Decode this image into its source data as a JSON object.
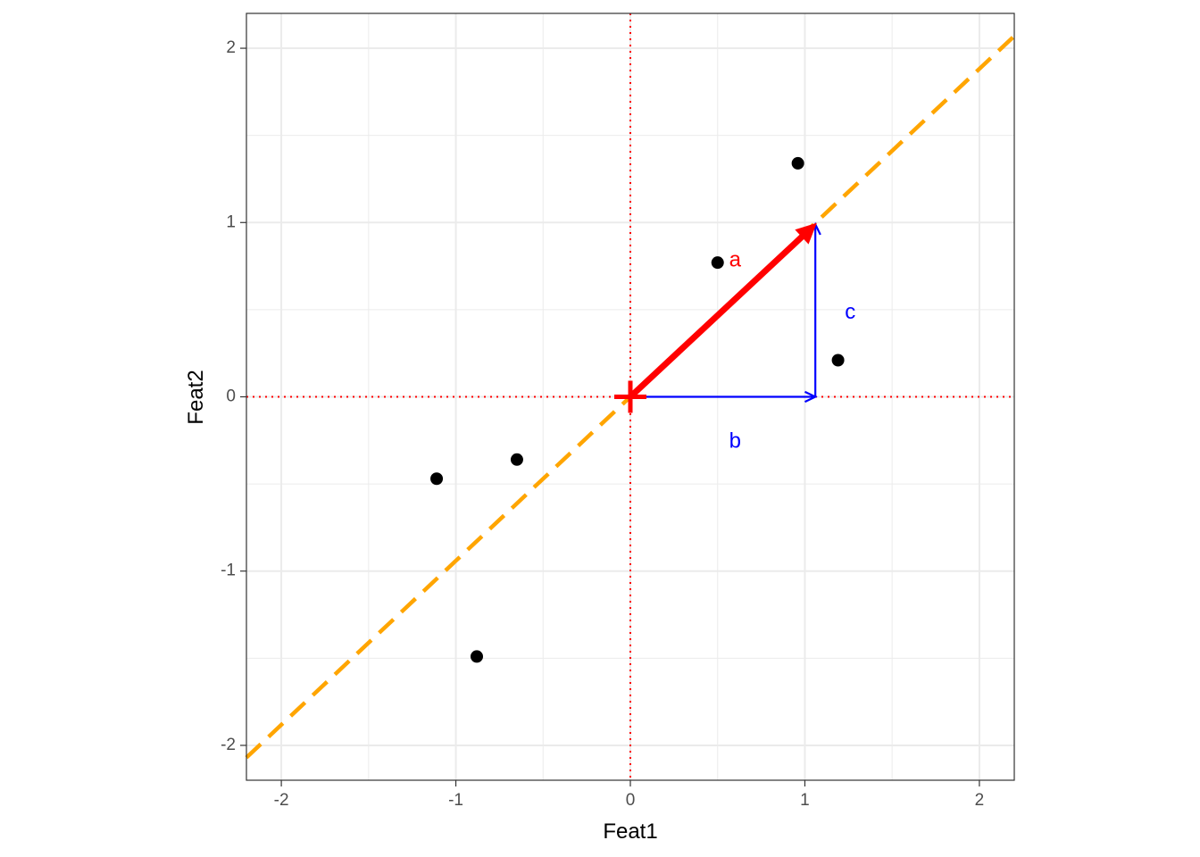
{
  "chart_data": {
    "type": "scatter",
    "xlabel": "Feat1",
    "ylabel": "Feat2",
    "xlim": [
      -2.2,
      2.2
    ],
    "ylim": [
      -2.2,
      2.2
    ],
    "x_ticks": [
      -2,
      -1,
      0,
      1,
      2
    ],
    "y_ticks": [
      -2,
      -1,
      0,
      1,
      2
    ],
    "x_tick_labels": [
      "-2",
      "-1",
      "0",
      "1",
      "2"
    ],
    "y_tick_labels": [
      "-2",
      "-1",
      "0",
      "1",
      "2"
    ],
    "grid": true,
    "points": [
      {
        "x": 0.96,
        "y": 1.34
      },
      {
        "x": 0.5,
        "y": 0.77
      },
      {
        "x": 1.19,
        "y": 0.21
      },
      {
        "x": -0.65,
        "y": -0.36
      },
      {
        "x": -1.11,
        "y": -0.47
      },
      {
        "x": -0.88,
        "y": -1.49
      }
    ],
    "reference_lines": {
      "vertical_x": 0,
      "horizontal_y": 0,
      "color": "#ff0000"
    },
    "diagonal_line": {
      "from": [
        -2.2,
        -2.07
      ],
      "to": [
        2.2,
        2.07
      ],
      "color": "#ffa500"
    },
    "vectors": [
      {
        "name": "a",
        "from": [
          0,
          0
        ],
        "to": [
          1.06,
          0.99
        ],
        "color": "#ff0000",
        "label": "a",
        "label_pos": [
          0.6,
          0.78
        ]
      },
      {
        "name": "b",
        "from": [
          0,
          0
        ],
        "to": [
          1.06,
          0
        ],
        "color": "#0000ff",
        "label": "b",
        "label_pos": [
          0.6,
          -0.26
        ]
      },
      {
        "name": "c",
        "from": [
          1.06,
          0
        ],
        "to": [
          1.06,
          0.99
        ],
        "color": "#0000ff",
        "label": "c",
        "label_pos": [
          1.26,
          0.48
        ]
      }
    ],
    "origin_marker": {
      "x": 0,
      "y": 0,
      "color": "#ff0000"
    }
  }
}
